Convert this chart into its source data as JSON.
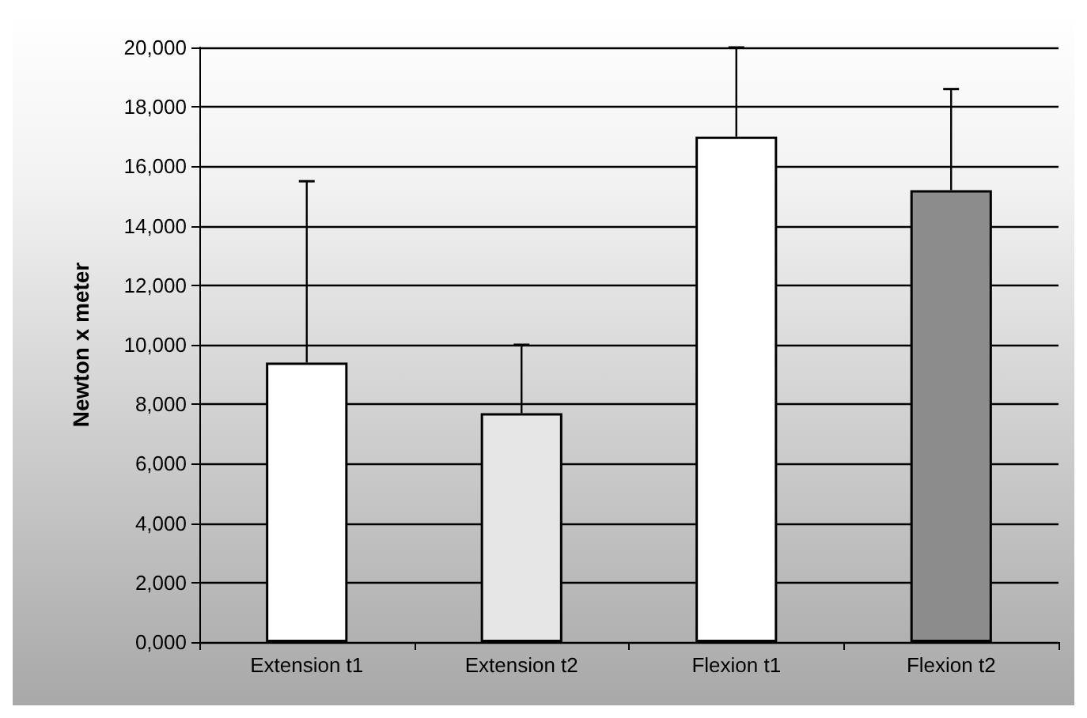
{
  "chart_data": {
    "type": "bar",
    "ylabel": "Newton x meter",
    "categories": [
      "Extension t1",
      "Extension t2",
      "Flexion t1",
      "Flexion t2"
    ],
    "values": [
      9400,
      7700,
      17000,
      15200
    ],
    "colors": [
      "#ffffff",
      "#e6e6e6",
      "#ffffff",
      "#8c8c8c"
    ],
    "errors": [
      [
        9400,
        15500
      ],
      [
        7700,
        10000
      ],
      [
        17000,
        20000
      ],
      [
        15200,
        18600
      ]
    ],
    "ylim": [
      0,
      20000
    ],
    "yticks": [
      {
        "value": 0,
        "label": "0,000"
      },
      {
        "value": 2000,
        "label": "2,000"
      },
      {
        "value": 4000,
        "label": "4,000"
      },
      {
        "value": 6000,
        "label": "6,000"
      },
      {
        "value": 8000,
        "label": "8,000"
      },
      {
        "value": 10000,
        "label": "10,000"
      },
      {
        "value": 12000,
        "label": "12,000"
      },
      {
        "value": 14000,
        "label": "14,000"
      },
      {
        "value": 16000,
        "label": "16,000"
      },
      {
        "value": 18000,
        "label": "18,000"
      },
      {
        "value": 20000,
        "label": "20,000"
      }
    ],
    "grid": "y"
  }
}
